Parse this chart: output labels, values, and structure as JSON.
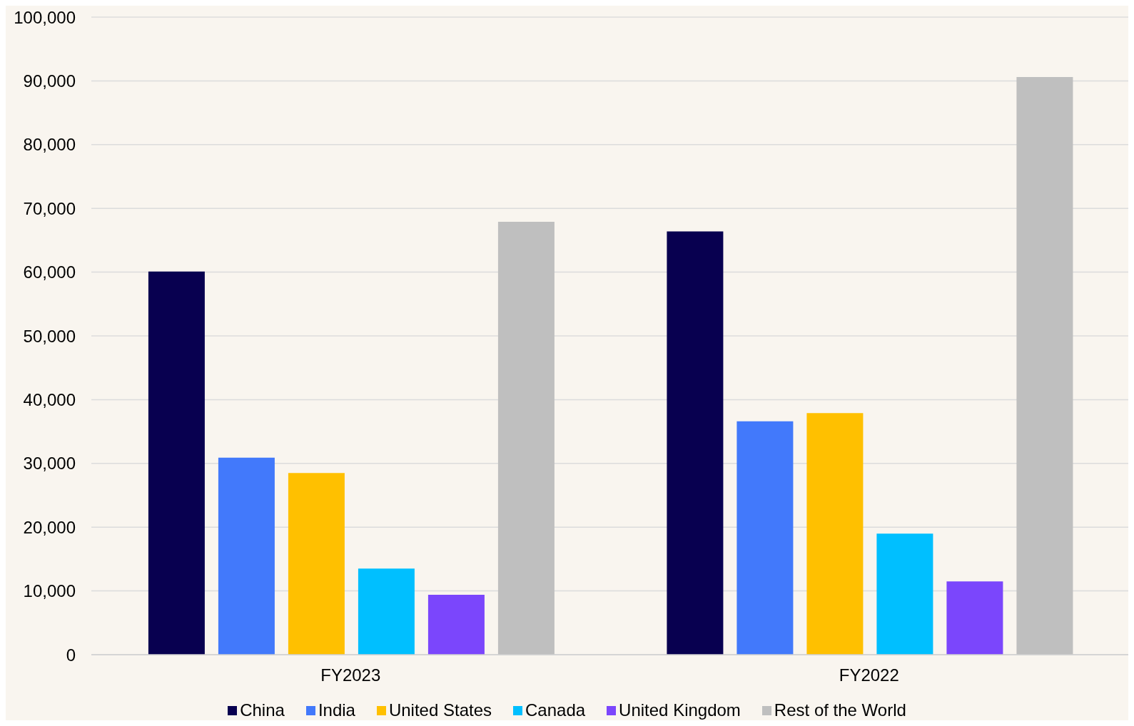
{
  "chart_data": {
    "type": "bar",
    "categories": [
      "FY2023",
      "FY2022"
    ],
    "series": [
      {
        "name": "China",
        "color": "#080050",
        "values": [
          60100,
          66400
        ]
      },
      {
        "name": "India",
        "color": "#4279fb",
        "values": [
          30900,
          36600
        ]
      },
      {
        "name": "United States",
        "color": "#ffc000",
        "values": [
          28500,
          37900
        ]
      },
      {
        "name": "Canada",
        "color": "#00bfff",
        "values": [
          13500,
          19000
        ]
      },
      {
        "name": "United Kingdom",
        "color": "#7b46fc",
        "values": [
          9400,
          11500
        ]
      },
      {
        "name": "Rest of the World",
        "color": "#bfbfbf",
        "values": [
          67900,
          90600
        ]
      }
    ],
    "ylim": [
      0,
      100000
    ],
    "yticks": [
      0,
      {
        "value": 10000,
        "label": "10,000"
      },
      {
        "value": 20000,
        "label": "20,000"
      },
      {
        "value": 30000,
        "label": "30,000"
      },
      {
        "value": 40000,
        "label": "40,000"
      },
      {
        "value": 50000,
        "label": "50,000"
      },
      {
        "value": 60000,
        "label": "60,000"
      },
      {
        "value": 70000,
        "label": "70,000"
      },
      {
        "value": 80000,
        "label": "80,000"
      },
      {
        "value": 90000,
        "label": "90,000"
      },
      {
        "value": 100000,
        "label": "100,000"
      }
    ],
    "grid": "y",
    "legend": "bottom"
  }
}
